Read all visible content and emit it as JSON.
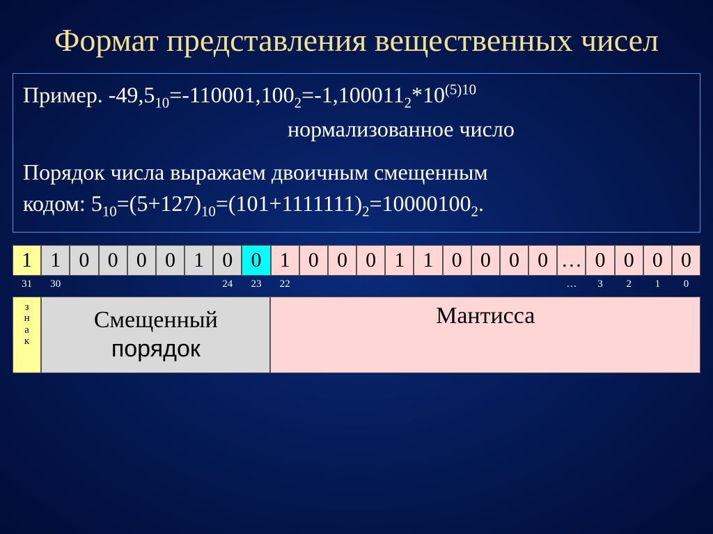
{
  "title": "Формат представления вещественных чисел",
  "example": {
    "line1_a": "Пример. -49,5",
    "line1_b": "=-110001,100",
    "line1_c": "=-1,100011",
    "line1_d": "*10",
    "sub10": "10",
    "sub2": "2",
    "sup5_10": "(5)10",
    "line2": "нормализованное число",
    "line3": "Порядок числа выражаем двоичным смещенным",
    "line4_a": "кодом: 5",
    "line4_b": "=(5+127)",
    "line4_c": "=(101+1111111)",
    "line4_d": "=10000100",
    "line4_e": "."
  },
  "bits": {
    "sign": "1",
    "exponent": [
      "1",
      "0",
      "0",
      "0",
      "0",
      "1",
      "0",
      "0"
    ],
    "mantissa": [
      "1",
      "0",
      "0",
      "0",
      "1",
      "1",
      "0",
      "0",
      "0",
      "0",
      "…",
      "0",
      "0",
      "0",
      "0"
    ]
  },
  "indices": [
    "31",
    "30",
    "",
    "",
    "",
    "",
    "",
    "24",
    "23",
    "22",
    "",
    "",
    "",
    "",
    "",
    "",
    "",
    "",
    "",
    "…",
    "3",
    "2",
    "1",
    "0"
  ],
  "labels": {
    "sign": [
      "з",
      "н",
      "а",
      "к"
    ],
    "exp_l1": "Смещенный",
    "exp_l2": "порядок",
    "mantissa": "Мантисса"
  },
  "colors": {
    "sign_bg": "#ffff99",
    "exp_bg": "#d9d9d9",
    "exp_last_bg": "#00ffff",
    "mant_bg": "#ffd6d6",
    "title_color": "#f0e090"
  }
}
